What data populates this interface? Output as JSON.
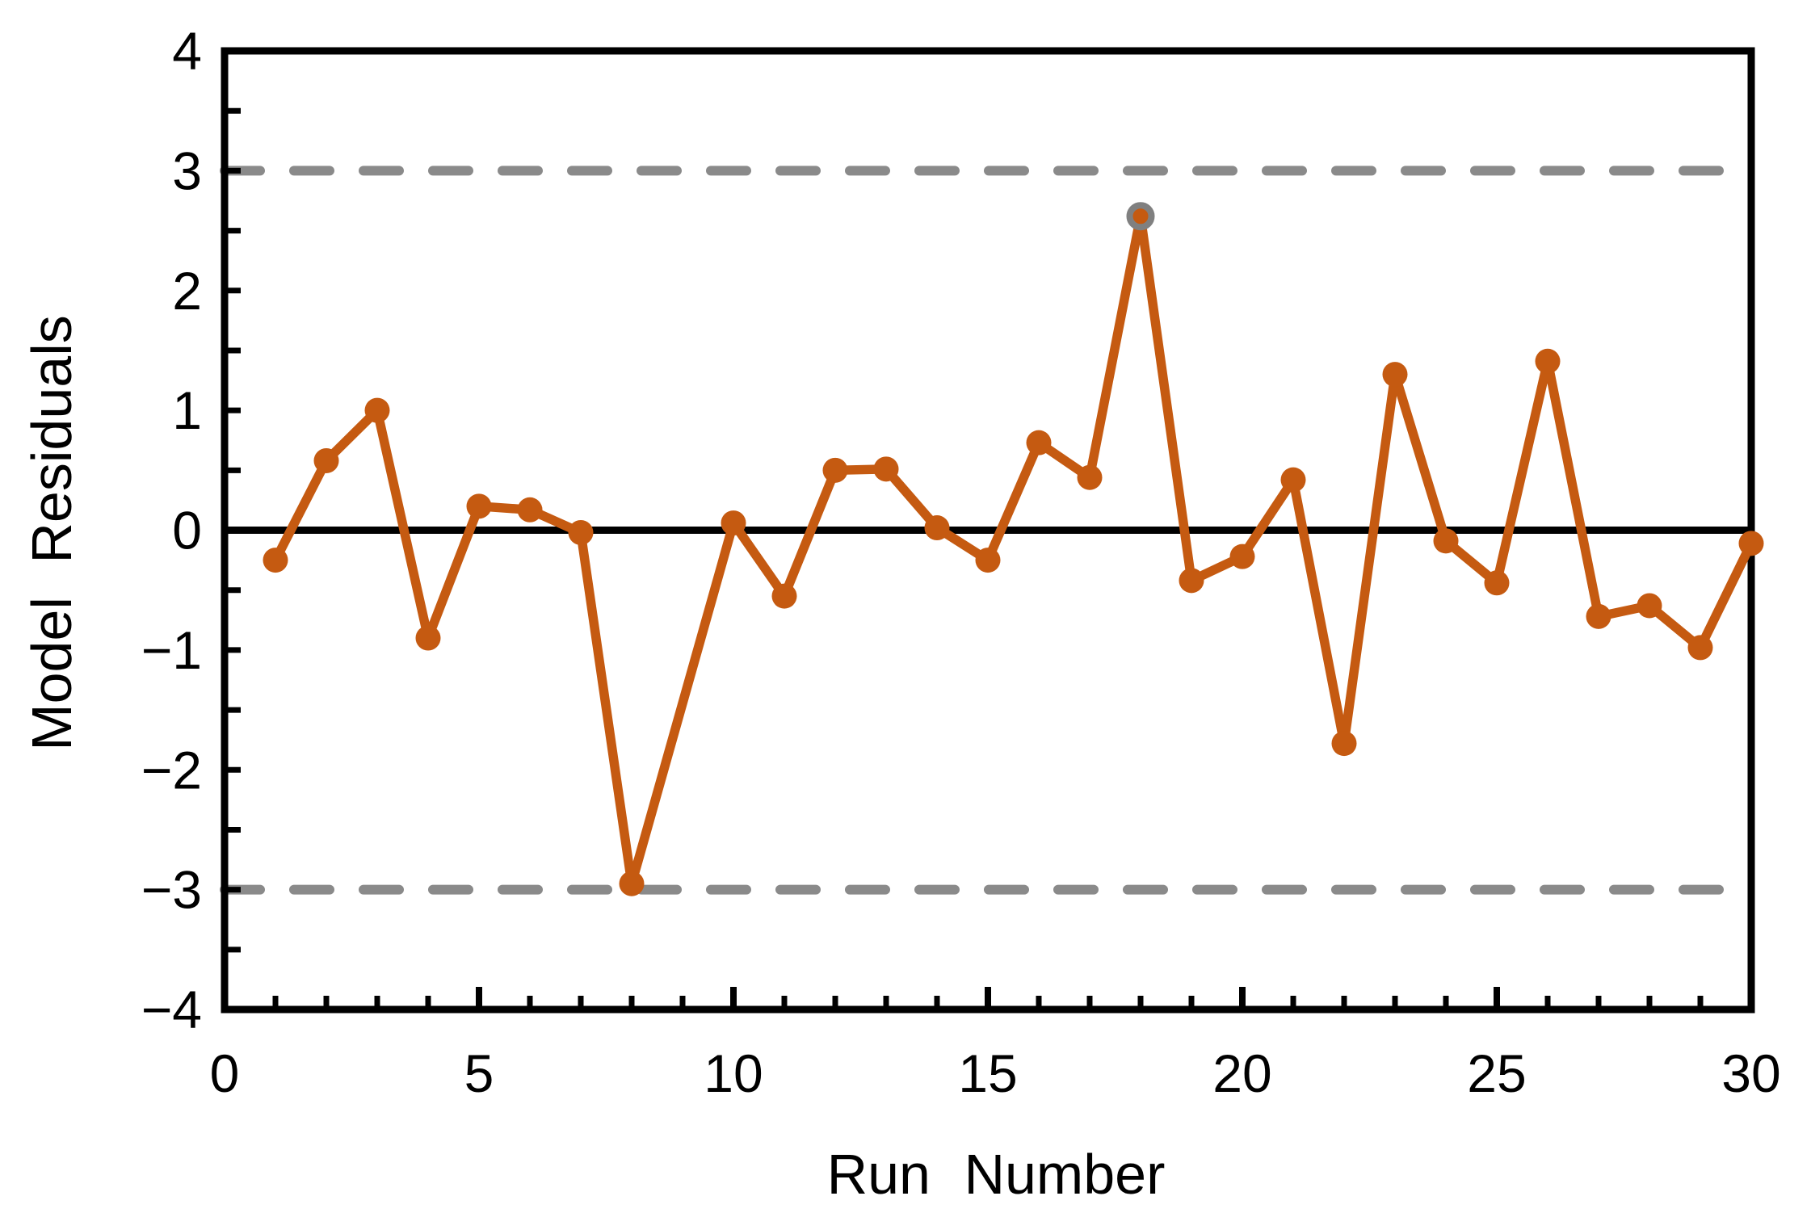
{
  "chart_data": {
    "type": "line",
    "title": "",
    "xlabel": "Run Number",
    "ylabel": "Model Residuals",
    "xlim": [
      0,
      30
    ],
    "ylim": [
      -4,
      4
    ],
    "x_major_ticks": [
      0,
      5,
      10,
      15,
      20,
      25,
      30
    ],
    "x_minor_tick_step": 1,
    "y_major_ticks": [
      4,
      3,
      2,
      1,
      0,
      -1,
      -2,
      -3,
      -4
    ],
    "y_minor_tick_step": 0.5,
    "grid": false,
    "legend": false,
    "center_line": 0,
    "control_limits": {
      "upper": 3,
      "lower": -3
    },
    "series": [
      {
        "name": "Model Residuals",
        "x": [
          1,
          2,
          3,
          4,
          5,
          6,
          7,
          8,
          10,
          11,
          12,
          13,
          14,
          15,
          16,
          17,
          18,
          19,
          20,
          21,
          22,
          23,
          24,
          25,
          26,
          27,
          28,
          29,
          30
        ],
        "y": [
          -0.25,
          0.58,
          1.0,
          -0.9,
          0.2,
          0.17,
          -0.02,
          -2.95,
          0.06,
          -0.55,
          0.5,
          0.51,
          0.02,
          -0.25,
          0.73,
          0.44,
          2.62,
          -0.42,
          -0.22,
          0.42,
          -1.78,
          1.3,
          -0.09,
          -0.44,
          1.41,
          -0.72,
          -0.63,
          -0.98,
          -0.11
        ]
      }
    ],
    "highlighted_point": {
      "x": 18,
      "y": 2.62,
      "note": "peak point outlined with gray ring"
    },
    "colors": {
      "series": "#C55A11",
      "control_limit_dash": "#8A8A8A",
      "highlight_ring": "#808080",
      "axis": "#000000",
      "background": "#FFFFFF"
    }
  }
}
